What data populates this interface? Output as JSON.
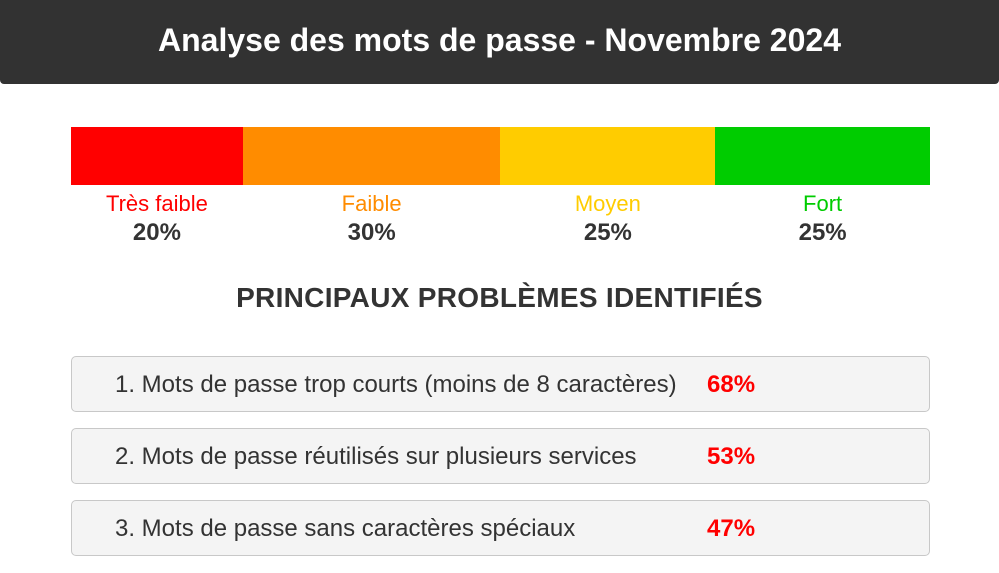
{
  "header": {
    "title": "Analyse des mots de passe - Novembre 2024"
  },
  "strength": {
    "segments": [
      {
        "label": "Très faible",
        "value": "20%",
        "fraction": 0.2,
        "color": "#ff0000"
      },
      {
        "label": "Faible",
        "value": "30%",
        "fraction": 0.3,
        "color": "#ff8c00"
      },
      {
        "label": "Moyen",
        "value": "25%",
        "fraction": 0.25,
        "color": "#ffcc00"
      },
      {
        "label": "Fort",
        "value": "25%",
        "fraction": 0.25,
        "color": "#00cc00"
      }
    ]
  },
  "problems": {
    "title": "PRINCIPAUX PROBLÈMES IDENTIFIÉS",
    "items": [
      {
        "text": "1. Mots de passe trop courts (moins de 8 caractères)",
        "percent": "68%"
      },
      {
        "text": "2. Mots de passe réutilisés sur plusieurs services",
        "percent": "53%"
      },
      {
        "text": "3. Mots de passe sans caractères spéciaux",
        "percent": "47%"
      }
    ]
  },
  "colors": {
    "header_bg": "#323232",
    "issue_percent": "#ff0000"
  }
}
